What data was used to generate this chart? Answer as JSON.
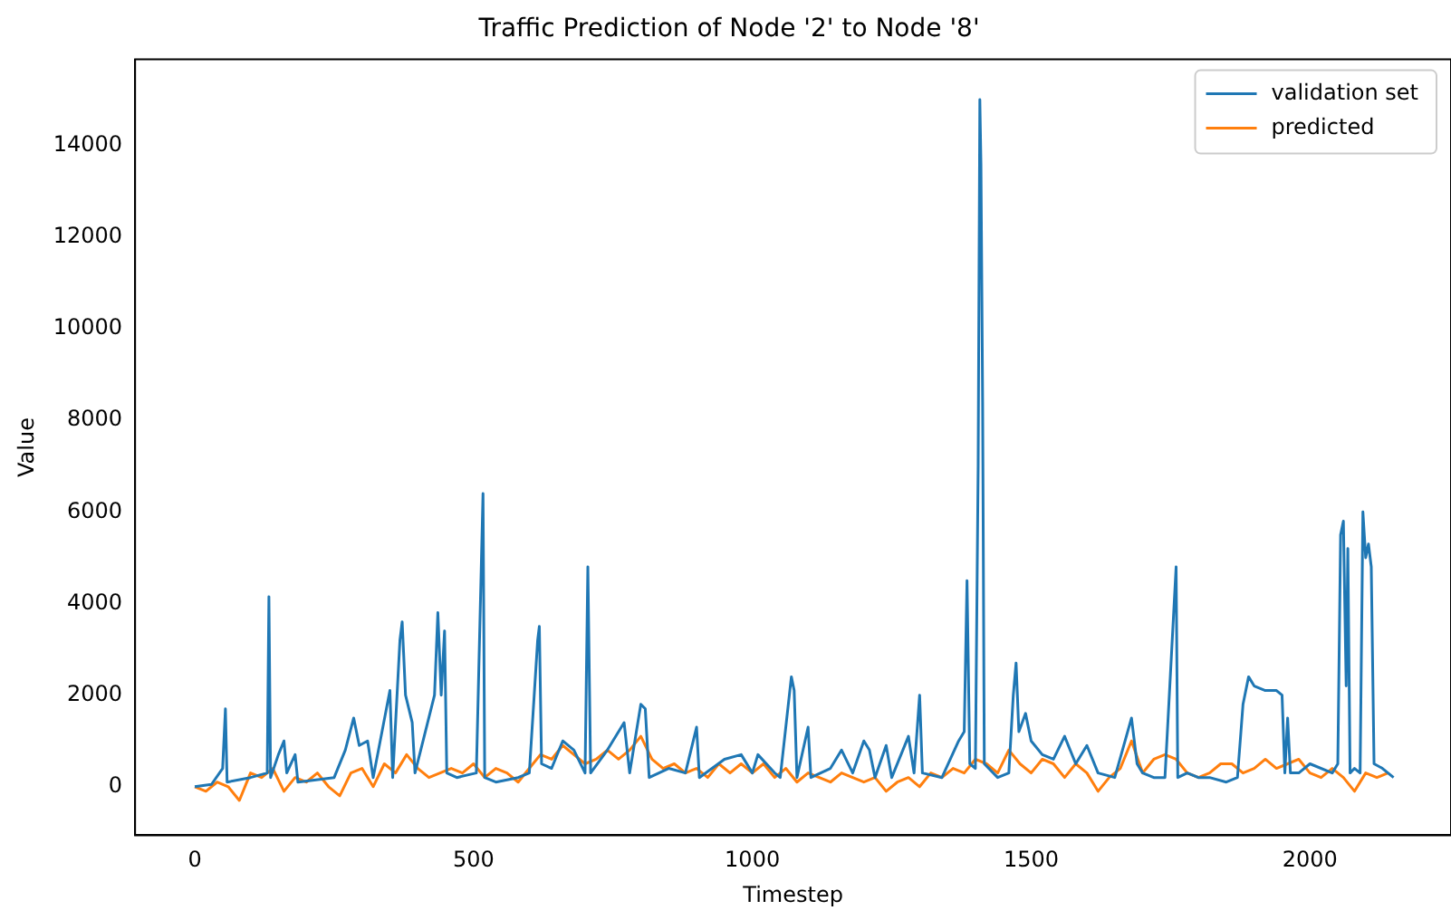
{
  "chart_data": {
    "type": "line",
    "title": "Traffic Prediction of Node '2' to Node '8'",
    "xlabel": "Timestep",
    "ylabel": "Value",
    "xlim": [
      -107,
      2253
    ],
    "xticks": [
      0,
      500,
      1000,
      1500,
      2000
    ],
    "ylim": [
      -1060,
      15880
    ],
    "yticks": [
      0,
      2000,
      4000,
      6000,
      8000,
      10000,
      12000,
      14000
    ],
    "legend": "top right",
    "grid": false,
    "marker": "none",
    "line_style": "solid",
    "series": [
      {
        "name": "validation set",
        "color": "#1f77b4",
        "x": [
          0,
          30,
          50,
          55,
          58,
          100,
          130,
          133,
          136,
          150,
          160,
          165,
          180,
          185,
          250,
          270,
          285,
          295,
          310,
          320,
          350,
          355,
          368,
          372,
          378,
          390,
          395,
          430,
          436,
          442,
          448,
          452,
          470,
          505,
          517,
          520,
          540,
          580,
          600,
          615,
          618,
          622,
          640,
          660,
          680,
          700,
          705,
          710,
          740,
          770,
          780,
          800,
          808,
          815,
          850,
          880,
          900,
          905,
          950,
          980,
          1000,
          1010,
          1040,
          1050,
          1070,
          1075,
          1080,
          1100,
          1105,
          1140,
          1160,
          1180,
          1200,
          1210,
          1220,
          1240,
          1250,
          1280,
          1290,
          1300,
          1305,
          1340,
          1370,
          1380,
          1385,
          1390,
          1400,
          1405,
          1408,
          1410,
          1413,
          1416,
          1440,
          1460,
          1468,
          1473,
          1478,
          1490,
          1500,
          1520,
          1540,
          1560,
          1580,
          1600,
          1620,
          1650,
          1680,
          1690,
          1700,
          1720,
          1740,
          1760,
          1763,
          1780,
          1800,
          1820,
          1850,
          1870,
          1880,
          1890,
          1900,
          1920,
          1940,
          1950,
          1955,
          1960,
          1965,
          1980,
          2000,
          2040,
          2050,
          2055,
          2060,
          2065,
          2068,
          2072,
          2080,
          2090,
          2095,
          2100,
          2105,
          2110,
          2115,
          2130,
          2140,
          2150
        ],
        "values": [
          0,
          50,
          400,
          1700,
          100,
          200,
          300,
          4150,
          200,
          700,
          1000,
          300,
          700,
          100,
          200,
          800,
          1500,
          900,
          1000,
          200,
          2100,
          200,
          3200,
          3600,
          2000,
          1400,
          300,
          2000,
          3800,
          2000,
          3400,
          300,
          200,
          300,
          6400,
          200,
          100,
          200,
          300,
          3200,
          3500,
          500,
          400,
          1000,
          800,
          300,
          4800,
          300,
          800,
          1400,
          300,
          1800,
          1700,
          200,
          400,
          300,
          1300,
          200,
          600,
          700,
          300,
          700,
          300,
          200,
          2400,
          2100,
          200,
          1300,
          200,
          400,
          800,
          300,
          1000,
          800,
          200,
          900,
          200,
          1100,
          300,
          2000,
          300,
          200,
          1000,
          1200,
          4500,
          500,
          400,
          7000,
          15000,
          13600,
          8400,
          500,
          200,
          300,
          2000,
          2700,
          1200,
          1600,
          1000,
          700,
          600,
          1100,
          500,
          900,
          300,
          200,
          1500,
          500,
          300,
          200,
          200,
          4800,
          200,
          300,
          200,
          200,
          100,
          200,
          1800,
          2400,
          2200,
          2100,
          2100,
          2000,
          300,
          1500,
          300,
          300,
          500,
          300,
          500,
          5500,
          5800,
          2200,
          5200,
          300,
          400,
          300,
          6000,
          5000,
          5300,
          4800,
          500,
          400,
          300,
          200
        ]
      },
      {
        "name": "predicted",
        "color": "#ff7f0e",
        "x": [
          0,
          20,
          40,
          60,
          80,
          100,
          120,
          140,
          160,
          180,
          200,
          220,
          240,
          260,
          280,
          300,
          320,
          340,
          360,
          380,
          400,
          420,
          440,
          460,
          480,
          500,
          520,
          540,
          560,
          580,
          600,
          620,
          640,
          660,
          680,
          700,
          720,
          740,
          760,
          780,
          800,
          820,
          840,
          860,
          880,
          900,
          920,
          940,
          960,
          980,
          1000,
          1020,
          1040,
          1060,
          1080,
          1100,
          1120,
          1140,
          1160,
          1180,
          1200,
          1220,
          1240,
          1260,
          1280,
          1300,
          1320,
          1340,
          1360,
          1380,
          1400,
          1420,
          1440,
          1460,
          1480,
          1500,
          1520,
          1540,
          1560,
          1580,
          1600,
          1620,
          1640,
          1660,
          1680,
          1700,
          1720,
          1740,
          1760,
          1780,
          1800,
          1820,
          1840,
          1860,
          1880,
          1900,
          1920,
          1940,
          1960,
          1980,
          2000,
          2020,
          2040,
          2060,
          2080,
          2100,
          2120,
          2140
        ],
        "values": [
          0,
          -100,
          100,
          0,
          -300,
          300,
          200,
          400,
          -100,
          200,
          100,
          300,
          0,
          -200,
          300,
          400,
          0,
          500,
          300,
          700,
          400,
          200,
          300,
          400,
          300,
          500,
          200,
          400,
          300,
          100,
          400,
          700,
          600,
          900,
          700,
          500,
          600,
          800,
          600,
          800,
          1100,
          600,
          400,
          500,
          300,
          400,
          200,
          500,
          300,
          500,
          300,
          500,
          200,
          400,
          100,
          300,
          200,
          100,
          300,
          200,
          100,
          200,
          -100,
          100,
          200,
          0,
          300,
          200,
          400,
          300,
          600,
          500,
          300,
          800,
          500,
          300,
          600,
          500,
          200,
          500,
          300,
          -100,
          200,
          400,
          1000,
          300,
          600,
          700,
          600,
          300,
          200,
          300,
          500,
          500,
          300,
          400,
          600,
          400,
          500,
          600,
          300,
          200,
          400,
          200,
          -100,
          300,
          200,
          300
        ]
      }
    ]
  }
}
